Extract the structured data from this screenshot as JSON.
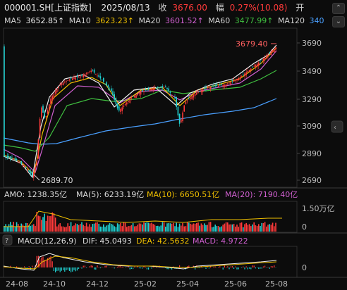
{
  "header": {
    "code": "000001.SH[上证指数]",
    "date": "2025/08/13",
    "close_label": "收",
    "close_value": "3676.00",
    "change_label": "幅",
    "change_value": "0.27%(10.08)",
    "open_label": "开"
  },
  "ma_legend": [
    {
      "label": "MA5",
      "value": "3652.85↑",
      "color": "#f0f0f0"
    },
    {
      "label": "MA10",
      "value": "3623.23↑",
      "color": "#f0c000"
    },
    {
      "label": "MA20",
      "value": "3601.52↑",
      "color": "#d060d0"
    },
    {
      "label": "MA60",
      "value": "3477.99↑",
      "color": "#40c040"
    },
    {
      "label": "MA120",
      "value": "340",
      "color": "#4aa0ff"
    }
  ],
  "price_axis": [
    "3690",
    "3490",
    "3290",
    "3090",
    "2890",
    "2690"
  ],
  "annotations": {
    "high": "3679.40",
    "low": "2689.70"
  },
  "volume_legend": {
    "amo": "AMO: 1238.35亿",
    "ma5": "MA(5): 6233.19亿",
    "ma10": "MA(10): 6650.51亿",
    "ma20": "MA(20): 7190.40亿",
    "unit": "1.50万亿",
    "zero": "0"
  },
  "macd_legend": {
    "help": "?",
    "title": "MACD(12,26,9)",
    "dif": "DIF: 45.0493",
    "dea": "DEA: 42.5632",
    "macd": "MACD: 4.9722",
    "zero": "0"
  },
  "x_axis": [
    "24-08",
    "24-10",
    "24-12",
    "25-02",
    "25-04",
    "25-06",
    "25-08"
  ],
  "colors": {
    "up": "#ff3a3a",
    "down": "#20d0d0",
    "bg": "#0c0c0c",
    "grid": "#2a2a2a"
  },
  "icons": {
    "chevron": "chevron-up-icon"
  }
}
